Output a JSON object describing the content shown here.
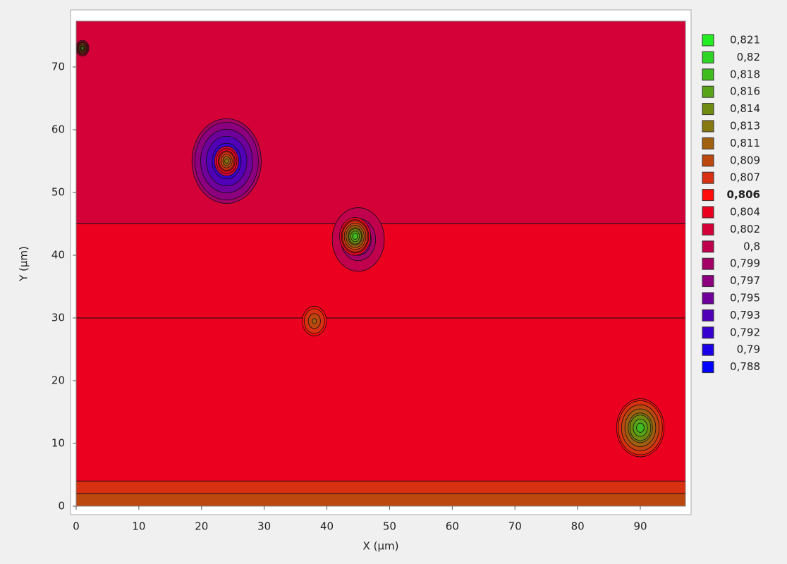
{
  "chart_data": {
    "type": "contour",
    "x_label": "X (µm)",
    "y_label": "Y (µm)",
    "xlim": [
      0,
      97.2
    ],
    "ylim": [
      0,
      77.3
    ],
    "xticks": [
      0,
      10,
      20,
      30,
      40,
      50,
      60,
      70,
      80,
      90
    ],
    "yticks": [
      0,
      10,
      20,
      30,
      40,
      50,
      60,
      70
    ],
    "levels": [
      {
        "value": 0.821,
        "label": "0,821",
        "color": "#22ee22"
      },
      {
        "value": 0.82,
        "label": "0,82",
        "color": "#2ed426"
      },
      {
        "value": 0.818,
        "label": "0,818",
        "color": "#40bb20"
      },
      {
        "value": 0.816,
        "label": "0,816",
        "color": "#58a418"
      },
      {
        "value": 0.814,
        "label": "0,814",
        "color": "#708c10"
      },
      {
        "value": 0.813,
        "label": "0,813",
        "color": "#887810"
      },
      {
        "value": 0.811,
        "label": "0,811",
        "color": "#a06010"
      },
      {
        "value": 0.809,
        "label": "0,809",
        "color": "#bc4810"
      },
      {
        "value": 0.807,
        "label": "0,807",
        "color": "#d83010"
      },
      {
        "value": 0.806,
        "label": "0,806",
        "color": "#ff0c0c"
      },
      {
        "value": 0.804,
        "label": "0,804",
        "color": "#ec0020"
      },
      {
        "value": 0.802,
        "label": "0,802",
        "color": "#d40038"
      },
      {
        "value": 0.8,
        "label": "0,8",
        "color": "#c0004c"
      },
      {
        "value": 0.799,
        "label": "0,799",
        "color": "#a40066"
      },
      {
        "value": 0.797,
        "label": "0,797",
        "color": "#8c0080"
      },
      {
        "value": 0.795,
        "label": "0,795",
        "color": "#70009c"
      },
      {
        "value": 0.793,
        "label": "0,793",
        "color": "#5200b8"
      },
      {
        "value": 0.792,
        "label": "0,792",
        "color": "#3600d0"
      },
      {
        "value": 0.79,
        "label": "0,79",
        "color": "#1a00e8"
      },
      {
        "value": 0.788,
        "label": "0,788",
        "color": "#0000ff"
      }
    ],
    "highlighted_level": 0.806,
    "background": {
      "y": [
        0,
        2,
        4,
        30,
        45,
        77.3
      ],
      "values": [
        0.809,
        0.807,
        0.805,
        0.805,
        0.802,
        0.801
      ]
    },
    "hotspots": [
      {
        "x": 24,
        "y": 55,
        "radius": 7,
        "value": 0.79
      },
      {
        "x": 24,
        "y": 55,
        "radius": 2.2,
        "value": 0.813
      },
      {
        "x": 45,
        "y": 42.5,
        "radius": 5,
        "value": 0.797
      },
      {
        "x": 44.5,
        "y": 43,
        "radius": 3,
        "value": 0.818
      },
      {
        "x": 38,
        "y": 29.5,
        "radius": 2.5,
        "value": 0.811
      },
      {
        "x": 90,
        "y": 12.5,
        "radius": 4.5,
        "value": 0.818
      },
      {
        "x": 1,
        "y": 73,
        "radius": 1.2,
        "value": 0.816
      }
    ]
  }
}
